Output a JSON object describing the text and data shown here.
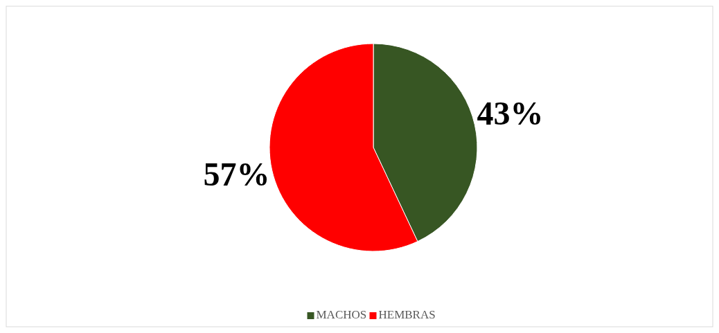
{
  "chart_data": {
    "type": "pie",
    "categories": [
      "MACHOS",
      "HEMBRAS"
    ],
    "values": [
      43,
      57
    ],
    "colors": [
      "#375623",
      "#ff0000"
    ],
    "value_labels": [
      "43%",
      "57%"
    ],
    "legend": "bottom"
  }
}
